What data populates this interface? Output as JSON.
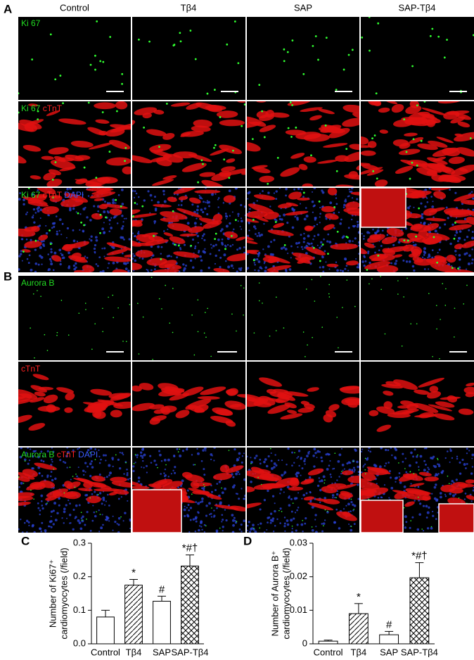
{
  "figure": {
    "column_headers": [
      "Control",
      "Tβ4",
      "SAP",
      "SAP-Tβ4"
    ],
    "panel_a": {
      "label": "A",
      "rows": [
        [
          "Ki 67"
        ],
        [
          "Ki 67",
          "cTnT"
        ],
        [
          "Ki 67",
          "cTnT",
          "DAPI"
        ]
      ]
    },
    "panel_b": {
      "label": "B",
      "rows": [
        [
          "Aurora B"
        ],
        [
          "cTnT"
        ],
        [
          "Aurora B",
          "cTnT",
          "DAPI"
        ]
      ]
    }
  },
  "chart_data": [
    {
      "type": "bar",
      "panel": "C",
      "ylabel": [
        "Number of Ki67⁺",
        "cardiomyocytes (/field)"
      ],
      "categories": [
        "Control",
        "Tβ4",
        "SAP",
        "SAP-Tβ4"
      ],
      "values": [
        0.08,
        0.175,
        0.127,
        0.232
      ],
      "errors": [
        0.02,
        0.017,
        0.015,
        0.033
      ],
      "annotations": [
        null,
        "*",
        "#",
        "*#†"
      ],
      "hatch": [
        "none",
        "/",
        "\\",
        "x"
      ],
      "ylim": [
        0,
        0.3
      ],
      "yticks": [
        {
          "value": 0,
          "label": "0.0"
        },
        0.1,
        0.2,
        0.3
      ]
    },
    {
      "type": "bar",
      "panel": "D",
      "ylabel": [
        "Number of Aurora B⁺",
        "cardiomyocytes (/field)"
      ],
      "categories": [
        "Control",
        "Tβ4",
        "SAP",
        "SAP-Tβ4"
      ],
      "values": [
        0.0008,
        0.009,
        0.0027,
        0.0197
      ],
      "errors": [
        0.0003,
        0.003,
        0.001,
        0.0045
      ],
      "annotations": [
        null,
        "*",
        "#",
        "*#†"
      ],
      "hatch": [
        "none",
        "/",
        "\\",
        "x"
      ],
      "ylim": [
        0,
        0.03
      ],
      "yticks": [
        0,
        0.01,
        0.02,
        0.03
      ]
    }
  ]
}
